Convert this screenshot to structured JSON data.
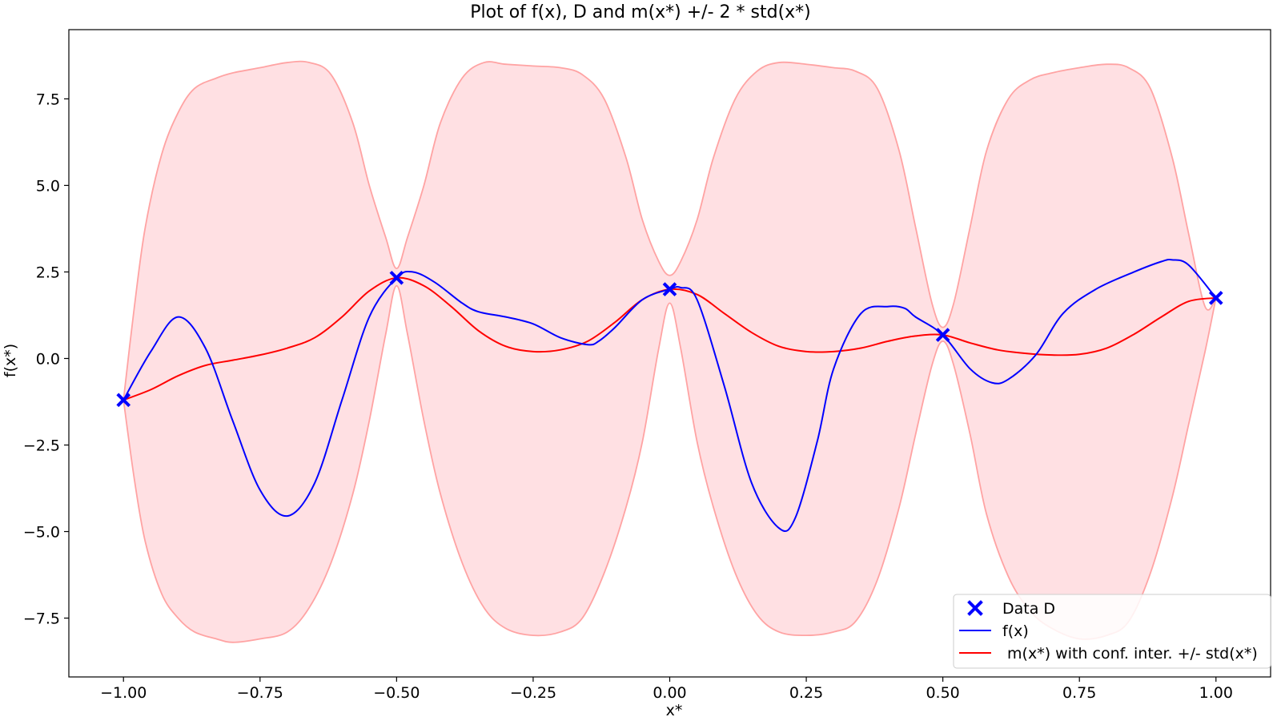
{
  "chart_data": {
    "type": "line",
    "title": "Plot of f(x), D and m(x*) +/- 2 * std(x*)",
    "xlabel": "x*",
    "ylabel": "f(x*)",
    "xlim": [
      -1.1,
      1.1
    ],
    "ylim": [
      -9.2,
      9.5
    ],
    "xticks": [
      -1.0,
      -0.75,
      -0.5,
      -0.25,
      0.0,
      0.25,
      0.5,
      0.75,
      1.0
    ],
    "xtick_labels": [
      "−1.00",
      "−0.75",
      "−0.50",
      "−0.25",
      "0.00",
      "0.25",
      "0.50",
      "0.75",
      "1.00"
    ],
    "yticks": [
      -7.5,
      -5.0,
      -2.5,
      0.0,
      2.5,
      5.0,
      7.5
    ],
    "ytick_labels": [
      "−7.5",
      "−5.0",
      "−2.5",
      "0.0",
      "2.5",
      "5.0",
      "7.5"
    ],
    "grid": false,
    "legend_position": "bottom-right",
    "colors": {
      "data": "#0000ff",
      "f": "#0000ff",
      "mean": "#ff0000",
      "band_fill": "#ffe0e3",
      "band_edge": "#ffa3a3"
    },
    "series": [
      {
        "name": "Data D",
        "type": "scatter",
        "marker": "x",
        "x": [
          -1.0,
          -0.5,
          0.0,
          0.5,
          1.0
        ],
        "y": [
          -1.2,
          2.33,
          2.0,
          0.68,
          1.75
        ]
      },
      {
        "name": "f(x)",
        "type": "line",
        "x": [
          -1.0,
          -0.95,
          -0.9,
          -0.85,
          -0.8,
          -0.75,
          -0.7,
          -0.65,
          -0.6,
          -0.55,
          -0.5,
          -0.47,
          -0.43,
          -0.38,
          -0.35,
          -0.3,
          -0.25,
          -0.2,
          -0.15,
          -0.13,
          -0.1,
          -0.05,
          0.0,
          0.02,
          0.05,
          0.1,
          0.15,
          0.2,
          0.23,
          0.27,
          0.3,
          0.35,
          0.4,
          0.43,
          0.45,
          0.5,
          0.55,
          0.59,
          0.62,
          0.67,
          0.72,
          0.78,
          0.85,
          0.9,
          0.92,
          0.95,
          1.0
        ],
        "y": [
          -1.2,
          0.2,
          1.2,
          0.3,
          -1.8,
          -3.8,
          -4.55,
          -3.6,
          -1.2,
          1.2,
          2.33,
          2.5,
          2.2,
          1.6,
          1.35,
          1.2,
          1.0,
          0.6,
          0.4,
          0.5,
          0.9,
          1.7,
          2.0,
          2.05,
          1.7,
          -0.8,
          -3.6,
          -4.9,
          -4.6,
          -2.4,
          -0.3,
          1.3,
          1.5,
          1.45,
          1.2,
          0.68,
          -0.3,
          -0.7,
          -0.6,
          0.1,
          1.3,
          2.0,
          2.5,
          2.8,
          2.85,
          2.7,
          1.75
        ]
      },
      {
        "name": " m(x*) with conf. inter. +/- std(x*)",
        "type": "line",
        "x": [
          -1.0,
          -0.95,
          -0.9,
          -0.85,
          -0.8,
          -0.75,
          -0.7,
          -0.65,
          -0.6,
          -0.55,
          -0.5,
          -0.45,
          -0.4,
          -0.35,
          -0.3,
          -0.25,
          -0.2,
          -0.15,
          -0.1,
          -0.05,
          0.0,
          0.05,
          0.1,
          0.15,
          0.2,
          0.25,
          0.3,
          0.35,
          0.4,
          0.45,
          0.5,
          0.55,
          0.6,
          0.65,
          0.7,
          0.75,
          0.8,
          0.85,
          0.9,
          0.95,
          1.0
        ],
        "y": [
          -1.2,
          -0.9,
          -0.5,
          -0.2,
          -0.05,
          0.1,
          0.3,
          0.6,
          1.2,
          1.95,
          2.33,
          2.1,
          1.5,
          0.8,
          0.35,
          0.2,
          0.25,
          0.5,
          1.05,
          1.7,
          2.0,
          1.85,
          1.3,
          0.75,
          0.35,
          0.2,
          0.2,
          0.3,
          0.5,
          0.65,
          0.68,
          0.45,
          0.25,
          0.15,
          0.1,
          0.12,
          0.3,
          0.7,
          1.2,
          1.65,
          1.75
        ]
      }
    ],
    "confidence_band": {
      "x": [
        -1.0,
        -0.98,
        -0.96,
        -0.93,
        -0.9,
        -0.87,
        -0.83,
        -0.8,
        -0.75,
        -0.7,
        -0.66,
        -0.62,
        -0.58,
        -0.55,
        -0.52,
        -0.5,
        -0.48,
        -0.45,
        -0.42,
        -0.38,
        -0.34,
        -0.3,
        -0.25,
        -0.2,
        -0.16,
        -0.12,
        -0.08,
        -0.05,
        -0.02,
        0.0,
        0.02,
        0.05,
        0.08,
        0.12,
        0.16,
        0.2,
        0.25,
        0.3,
        0.34,
        0.38,
        0.42,
        0.45,
        0.48,
        0.5,
        0.52,
        0.55,
        0.58,
        0.62,
        0.66,
        0.7,
        0.75,
        0.8,
        0.84,
        0.88,
        0.92,
        0.95,
        0.98,
        1.0
      ],
      "upper": [
        -1.2,
        1.5,
        3.8,
        5.9,
        7.1,
        7.8,
        8.1,
        8.25,
        8.4,
        8.55,
        8.55,
        8.2,
        6.8,
        5.0,
        3.5,
        2.6,
        3.5,
        5.0,
        6.8,
        8.1,
        8.55,
        8.5,
        8.45,
        8.4,
        8.2,
        7.5,
        5.8,
        4.0,
        2.8,
        2.4,
        2.8,
        4.0,
        5.8,
        7.5,
        8.3,
        8.55,
        8.5,
        8.4,
        8.3,
        7.8,
        6.0,
        3.8,
        1.6,
        0.9,
        1.6,
        3.8,
        6.0,
        7.5,
        8.05,
        8.25,
        8.4,
        8.5,
        8.4,
        7.8,
        5.8,
        3.6,
        1.5,
        1.75
      ],
      "lower": [
        -1.2,
        -3.5,
        -5.3,
        -6.8,
        -7.5,
        -7.9,
        -8.1,
        -8.2,
        -8.1,
        -7.9,
        -7.2,
        -5.9,
        -3.9,
        -1.8,
        0.7,
        2.1,
        0.7,
        -1.8,
        -3.9,
        -5.9,
        -7.2,
        -7.8,
        -8.0,
        -7.9,
        -7.5,
        -6.2,
        -4.3,
        -2.4,
        0.3,
        1.6,
        0.3,
        -2.4,
        -4.3,
        -6.2,
        -7.4,
        -7.9,
        -8.0,
        -7.9,
        -7.6,
        -6.4,
        -4.3,
        -2.2,
        -0.2,
        0.5,
        -0.2,
        -2.2,
        -4.5,
        -6.3,
        -7.3,
        -7.8,
        -8.1,
        -8.0,
        -7.6,
        -6.2,
        -4.0,
        -1.9,
        0.2,
        1.75
      ]
    }
  }
}
